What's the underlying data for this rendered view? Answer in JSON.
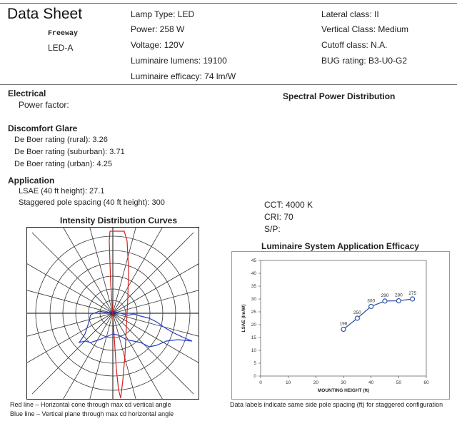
{
  "header": {
    "title": "Data Sheet",
    "road_type": "Freeway",
    "model": "LED-A",
    "lamp_type": "Lamp Type: LED",
    "power": "Power: 258 W",
    "voltage": "Voltage: 120V",
    "lumens": "Luminaire lumens: 19100",
    "efficacy": "Luminaire efficacy: 74 lm/W",
    "lateral": "Lateral class: II",
    "vertical": "Vertical Class: Medium",
    "cutoff": "Cutoff class: N.A.",
    "bug": "BUG rating: B3-U0-G2"
  },
  "electrical": {
    "heading": "Electrical",
    "power_factor": "Power factor:"
  },
  "glare": {
    "heading": "Discomfort Glare",
    "rural": "De Boer rating (rural): 3.26",
    "suburban": "De Boer rating (suburban): 3.71",
    "urban": "De Boer rating (urban): 4.25"
  },
  "application": {
    "heading": "Application",
    "lsae": "LSAE (40 ft height): 27.1",
    "spacing": "Staggered pole spacing (40 ft height): 300"
  },
  "spectral": {
    "heading": "Spectral Power Distribution",
    "cct": "CCT: 4000 K",
    "cri": "CRI: 70",
    "sp": "S/P:"
  },
  "intensity": {
    "title": "Intensity Distribution Curves",
    "red_note": "Red line – Horizontal cone through max cd vertical angle",
    "blue_note": "Blue line – Vertical plane through max cd horizontal angle",
    "colors": {
      "red": "#d42020",
      "blue": "#2b3fc8"
    }
  },
  "chart_data": {
    "type": "line",
    "title": "Luminaire System Application Efficacy",
    "xlabel": "MOUNTING HEIGHT (ft)",
    "ylabel": "LSAE (lm/W)",
    "xlim": [
      0,
      60
    ],
    "ylim": [
      0,
      45
    ],
    "xticks": [
      "0",
      "10",
      "20",
      "30",
      "40",
      "50",
      "60"
    ],
    "yticks": [
      "0",
      "5",
      "10",
      "15",
      "20",
      "25",
      "30",
      "35",
      "40",
      "45"
    ],
    "series": [
      {
        "x": [
          30,
          35,
          40,
          45,
          50,
          55
        ],
        "y": [
          18.2,
          22.5,
          27.1,
          29.2,
          29.3,
          30.0
        ],
        "labels": [
          "198",
          "250",
          "300",
          "290",
          "280",
          "275"
        ]
      }
    ],
    "grid": false,
    "color": "#2b55a8",
    "note": "Data labels indicate same side pole spacing (ft) for staggered configuration"
  }
}
